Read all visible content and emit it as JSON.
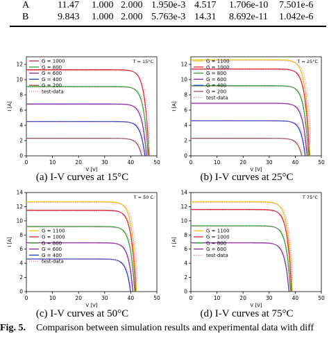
{
  "table": {
    "rows": [
      [
        "A",
        "11.47",
        "1.000",
        "2.000",
        "1.950e-3",
        "4.517",
        "1.706e-10",
        "7.501e-6"
      ],
      [
        "B",
        "9.843",
        "1.000",
        "2.000",
        "5.763e-3",
        "14.31",
        "8.692e-11",
        "1.042e-6"
      ]
    ]
  },
  "figure": {
    "caption_label": "Fig. 5.",
    "caption_text": "Comparison between simulation results and experimental data with diff"
  },
  "colors": {
    "1100": "#f2c80f",
    "1000": "#d62728",
    "800": "#2ca02c",
    "600": "#7f2aa0",
    "400": "#1f3fbf",
    "200": "#8c564b",
    "test": "#e377c2"
  },
  "chart_data": [
    {
      "type": "line",
      "caption": "(a) I-V curves at 15°C",
      "annotation": "T = 15°C",
      "xlabel": "V [V]",
      "ylabel": "I [A]",
      "xlim": [
        0,
        50
      ],
      "ylim": [
        0,
        13
      ],
      "xticks": [
        0,
        10,
        20,
        30,
        40,
        50
      ],
      "yticks": [
        0,
        2,
        4,
        6,
        8,
        10,
        12
      ],
      "legend_position": "top-left",
      "grid": false,
      "series": [
        {
          "name": "G = 1000",
          "g": "1000",
          "isc": 11.3,
          "voc": 47.0
        },
        {
          "name": "G = 800",
          "g": "800",
          "isc": 9.1,
          "voc": 46.6
        },
        {
          "name": "G = 600",
          "g": "600",
          "isc": 6.8,
          "voc": 46.0
        },
        {
          "name": "G = 400",
          "g": "400",
          "isc": 4.5,
          "voc": 45.4
        },
        {
          "name": "G = 200",
          "g": "200",
          "isc": 2.3,
          "voc": 44.2
        }
      ],
      "test_label": "test-data"
    },
    {
      "type": "line",
      "caption": "(b) I-V curves at 25°C",
      "annotation": "T = 25°C",
      "xlabel": "V [V]",
      "ylabel": "I [A]",
      "xlim": [
        0,
        50
      ],
      "ylim": [
        0,
        13
      ],
      "xticks": [
        0,
        10,
        20,
        30,
        40,
        50
      ],
      "yticks": [
        0,
        2,
        4,
        6,
        8,
        10,
        12
      ],
      "legend_position": "top-left",
      "grid": false,
      "series": [
        {
          "name": "G = 1100",
          "g": "1100",
          "isc": 12.6,
          "voc": 45.6
        },
        {
          "name": "G = 1000",
          "g": "1000",
          "isc": 11.4,
          "voc": 45.4
        },
        {
          "name": "G = 800",
          "g": "800",
          "isc": 9.2,
          "voc": 45.0
        },
        {
          "name": "G = 600",
          "g": "600",
          "isc": 6.9,
          "voc": 44.5
        },
        {
          "name": "G = 400",
          "g": "400",
          "isc": 4.6,
          "voc": 43.8
        },
        {
          "name": "G = 200",
          "g": "200",
          "isc": 2.3,
          "voc": 42.5
        }
      ],
      "test_label": "test-data"
    },
    {
      "type": "line",
      "caption": "(c) I-V curves at 50°C",
      "annotation": "T = 50 C",
      "xlabel": "V [V]",
      "ylabel": "I [A]",
      "xlim": [
        0,
        50
      ],
      "ylim": [
        0,
        14
      ],
      "xticks": [
        0,
        10,
        20,
        30,
        40,
        50
      ],
      "yticks": [
        0,
        2,
        4,
        6,
        8,
        10,
        12,
        14
      ],
      "legend_position": "center-left",
      "grid": false,
      "series": [
        {
          "name": "G = 1100",
          "g": "1100",
          "isc": 12.7,
          "voc": 42.2
        },
        {
          "name": "G = 1000",
          "g": "1000",
          "isc": 11.5,
          "voc": 41.9
        },
        {
          "name": "G = 800",
          "g": "800",
          "isc": 9.2,
          "voc": 41.5
        },
        {
          "name": "G = 600",
          "g": "600",
          "isc": 6.9,
          "voc": 40.8
        },
        {
          "name": "G = 400",
          "g": "400",
          "isc": 4.6,
          "voc": 39.9
        }
      ],
      "test_label": "test-data"
    },
    {
      "type": "line",
      "caption": "(d) I-V curves at 75°C",
      "annotation": "T 75°C",
      "xlabel": "V [V]",
      "ylabel": "I [A]",
      "xlim": [
        0,
        50
      ],
      "ylim": [
        0,
        14
      ],
      "xticks": [
        0,
        10,
        20,
        30,
        40,
        50
      ],
      "yticks": [
        0,
        2,
        4,
        6,
        8,
        10,
        12,
        14
      ],
      "legend_position": "center-left",
      "grid": false,
      "series": [
        {
          "name": "G = 1100",
          "g": "1100",
          "isc": 12.7,
          "voc": 38.8
        },
        {
          "name": "G = 1000",
          "g": "1000",
          "isc": 11.6,
          "voc": 38.6
        },
        {
          "name": "G = 800",
          "g": "800",
          "isc": 9.3,
          "voc": 38.2
        },
        {
          "name": "G = 600",
          "g": "600",
          "isc": 6.9,
          "voc": 37.6
        }
      ],
      "test_label": "test-data"
    }
  ]
}
